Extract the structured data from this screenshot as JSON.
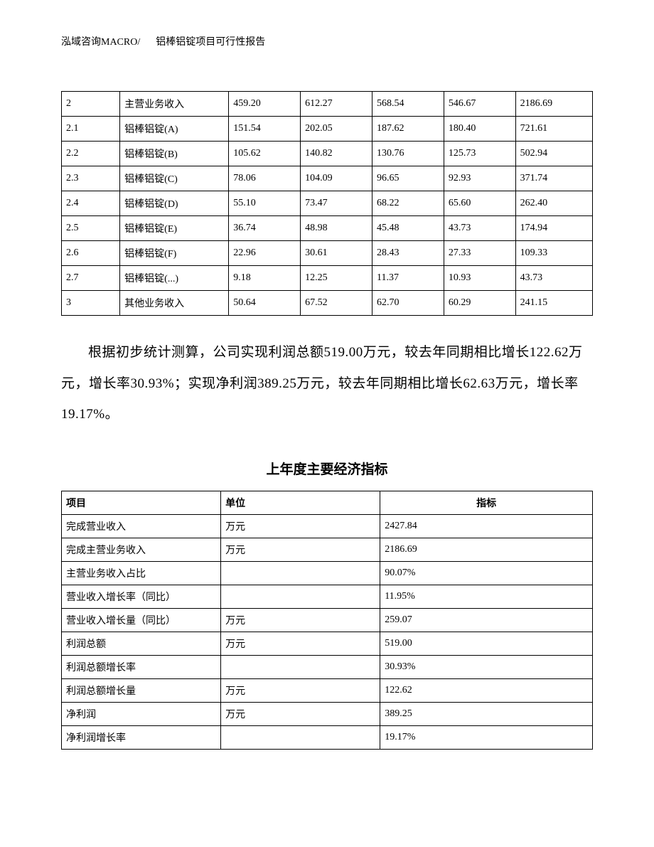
{
  "header": {
    "company": "泓域咨询MACRO/",
    "title": "铝棒铝锭项目可行性报告"
  },
  "table1": {
    "type": "table",
    "border_color": "#000000",
    "background_color": "#ffffff",
    "font_size_pt": 10.5,
    "col_widths_pct": [
      11,
      20.5,
      13.5,
      13.5,
      13.5,
      13.5,
      14.5
    ],
    "rows": [
      [
        "2",
        "主营业务收入",
        "459.20",
        "612.27",
        "568.54",
        "546.67",
        "2186.69"
      ],
      [
        "2.1",
        "铝棒铝锭(A)",
        "151.54",
        "202.05",
        "187.62",
        "180.40",
        "721.61"
      ],
      [
        "2.2",
        "铝棒铝锭(B)",
        "105.62",
        "140.82",
        "130.76",
        "125.73",
        "502.94"
      ],
      [
        "2.3",
        "铝棒铝锭(C)",
        "78.06",
        "104.09",
        "96.65",
        "92.93",
        "371.74"
      ],
      [
        "2.4",
        "铝棒铝锭(D)",
        "55.10",
        "73.47",
        "68.22",
        "65.60",
        "262.40"
      ],
      [
        "2.5",
        "铝棒铝锭(E)",
        "36.74",
        "48.98",
        "45.48",
        "43.73",
        "174.94"
      ],
      [
        "2.6",
        "铝棒铝锭(F)",
        "22.96",
        "30.61",
        "28.43",
        "27.33",
        "109.33"
      ],
      [
        "2.7",
        "铝棒铝锭(...)",
        "9.18",
        "12.25",
        "11.37",
        "10.93",
        "43.73"
      ],
      [
        "3",
        "其他业务收入",
        "50.64",
        "67.52",
        "62.70",
        "60.29",
        "241.15"
      ]
    ]
  },
  "paragraph": "根据初步统计测算，公司实现利润总额519.00万元，较去年同期相比增长122.62万元，增长率30.93%；实现净利润389.25万元，较去年同期相比增长62.63万元，增长率19.17%。",
  "subtitle": "上年度主要经济指标",
  "table2": {
    "type": "table",
    "border_color": "#000000",
    "background_color": "#ffffff",
    "font_size_pt": 10.5,
    "col_widths_pct": [
      30,
      30,
      40
    ],
    "headers": [
      "项目",
      "单位",
      "指标"
    ],
    "header_align": [
      "left",
      "left",
      "center"
    ],
    "rows": [
      [
        "完成营业收入",
        "万元",
        "2427.84"
      ],
      [
        "完成主营业务收入",
        "万元",
        "2186.69"
      ],
      [
        "主营业务收入占比",
        "",
        "90.07%"
      ],
      [
        "营业收入增长率（同比）",
        "",
        "11.95%"
      ],
      [
        "营业收入增长量（同比）",
        "万元",
        "259.07"
      ],
      [
        "利润总额",
        "万元",
        "519.00"
      ],
      [
        "利润总额增长率",
        "",
        "30.93%"
      ],
      [
        "利润总额增长量",
        "万元",
        "122.62"
      ],
      [
        "净利润",
        "万元",
        "389.25"
      ],
      [
        "净利润增长率",
        "",
        "19.17%"
      ]
    ]
  }
}
